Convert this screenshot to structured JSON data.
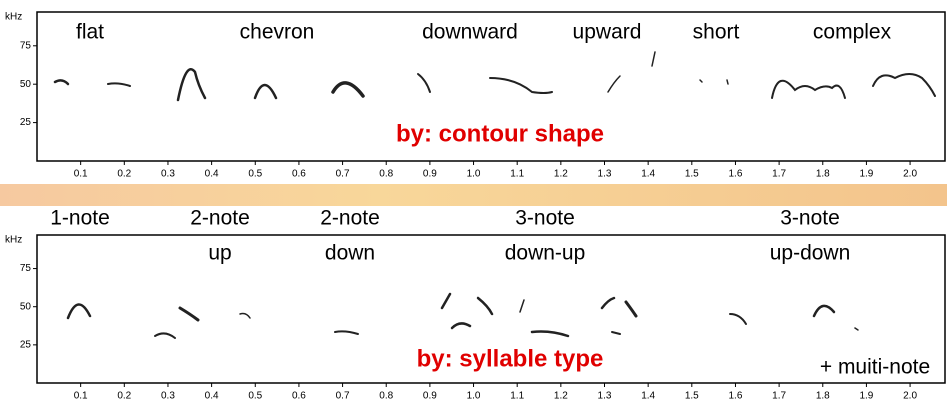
{
  "panels": [
    {
      "y_unit": "kHz",
      "ylim": [
        0,
        97
      ],
      "yticks": [
        25,
        50,
        75
      ],
      "xlim": [
        0,
        2.08
      ],
      "xticks": [
        0.1,
        0.2,
        0.3,
        0.4,
        0.5,
        0.6,
        0.7,
        0.8,
        0.9,
        {
          "value": 1,
          "label": "1.0"
        },
        1.1,
        1.2,
        1.3,
        1.4,
        1.5,
        1.6,
        1.7,
        1.8,
        1.9,
        {
          "value": 2,
          "label": "2.0"
        }
      ],
      "labels": [
        [
          "flat"
        ],
        [
          "chevron"
        ],
        [
          "downward"
        ],
        [
          "upward"
        ],
        [
          "short"
        ],
        [
          "complex"
        ]
      ],
      "caption": "by: contour shape"
    },
    {
      "y_unit": "kHz",
      "ylim": [
        0,
        97
      ],
      "yticks": [
        25,
        50,
        75
      ],
      "xlim": [
        0,
        2.08
      ],
      "xticks": [
        0.1,
        0.2,
        0.3,
        0.4,
        0.5,
        0.6,
        0.7,
        0.8,
        0.9,
        {
          "value": 1,
          "label": "1.0"
        },
        1.1,
        1.2,
        1.3,
        1.4,
        1.5,
        1.6,
        1.7,
        1.8,
        1.9,
        {
          "value": 2,
          "label": "2.0"
        }
      ],
      "labels": [
        [
          "1-note"
        ],
        [
          "2-note",
          "up"
        ],
        [
          "2-note",
          "down"
        ],
        [
          "3-note",
          "down-up"
        ],
        [
          "3-note",
          "up-down"
        ]
      ],
      "caption": "by: syllable type",
      "note": "+ muiti-note"
    }
  ]
}
